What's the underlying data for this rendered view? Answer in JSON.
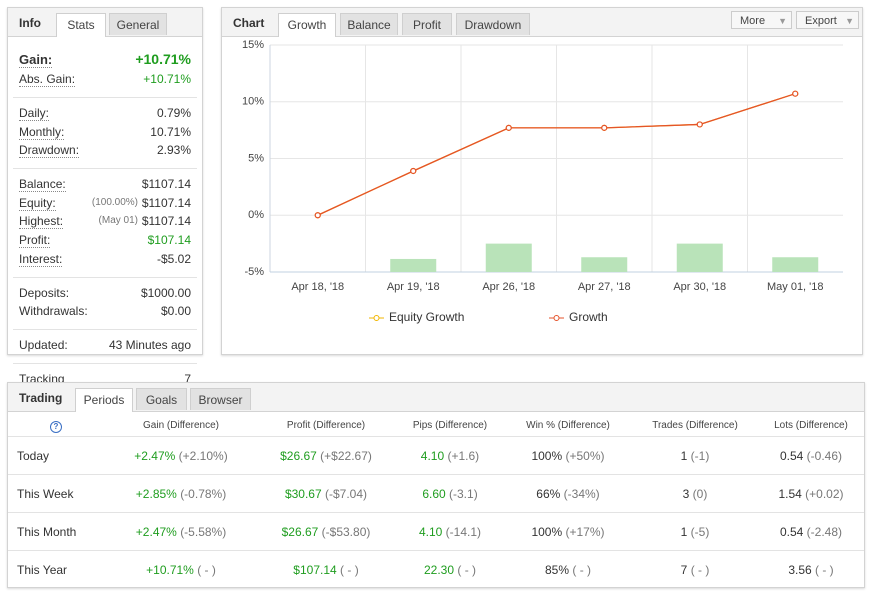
{
  "info_panel": {
    "title": "Info",
    "tabs": [
      "Stats",
      "General"
    ],
    "active_tab": 0,
    "groups": [
      [
        {
          "label": "Gain:",
          "value": "+10.71%",
          "color": "#1f9d1f",
          "emphasis": true
        },
        {
          "label": "Abs. Gain:",
          "value": "+10.71%",
          "color": "#1f9d1f"
        }
      ],
      [
        {
          "label": "Daily:",
          "value": "0.79%"
        },
        {
          "label": "Monthly:",
          "value": "10.71%"
        },
        {
          "label": "Drawdown:",
          "value": "2.93%"
        }
      ],
      [
        {
          "label": "Balance:",
          "value": "$1107.14"
        },
        {
          "label": "Equity:",
          "note": "(100.00%)",
          "value": "$1107.14"
        },
        {
          "label": "Highest:",
          "note": "(May 01)",
          "value": "$1107.14"
        },
        {
          "label": "Profit:",
          "value": "$107.14",
          "color": "#1f9d1f"
        },
        {
          "label": "Interest:",
          "value": "-$5.02"
        }
      ],
      [
        {
          "label": "Deposits:",
          "value": "$1000.00"
        },
        {
          "label": "Withdrawals:",
          "value": "$0.00"
        }
      ],
      [
        {
          "label": "Updated:",
          "value": "43 Minutes ago"
        }
      ],
      [
        {
          "label": "Tracking",
          "value": "7"
        }
      ]
    ]
  },
  "chart_panel": {
    "title": "Chart",
    "tabs": [
      "Growth",
      "Balance",
      "Profit",
      "Drawdown"
    ],
    "active_tab": 0,
    "buttons": [
      "More",
      "Export"
    ]
  },
  "chart_data": {
    "type": "line",
    "categories": [
      "Apr 18, '18",
      "Apr 19, '18",
      "Apr 26, '18",
      "Apr 27, '18",
      "Apr 30, '18",
      "May 01, '18"
    ],
    "series": [
      {
        "name": "Equity Growth",
        "color": "#f2b600",
        "values": [
          0,
          3.9,
          7.7,
          7.7,
          8.0,
          10.71
        ]
      },
      {
        "name": "Growth",
        "color": "#e5532b",
        "values": [
          0,
          3.9,
          7.7,
          7.7,
          8.0,
          10.71
        ]
      }
    ],
    "bars": {
      "color": "#b9e3b9",
      "values": [
        null,
        -3.85,
        -2.5,
        -3.7,
        -2.5,
        -3.7
      ]
    },
    "ylim": [
      -5,
      15
    ],
    "yticks": [
      {
        "value": 15,
        "label": "15%"
      },
      {
        "value": 10,
        "label": "10%"
      },
      {
        "value": 5,
        "label": "5%"
      },
      {
        "value": 0,
        "label": "0%"
      },
      {
        "value": -5,
        "label": "-5%"
      }
    ],
    "grid": true
  },
  "trading": {
    "title": "Trading",
    "tabs": [
      "Periods",
      "Goals",
      "Browser"
    ],
    "active_tab": 0,
    "help_icon": "?",
    "columns": [
      {
        "label": "Gain (Difference)",
        "color": "#1f9d1f"
      },
      {
        "label": "Profit (Difference)",
        "color": "#1f9d1f"
      },
      {
        "label": "Pips (Difference)",
        "color": "#1f9d1f"
      },
      {
        "label": "Win % (Difference)"
      },
      {
        "label": "Trades (Difference)"
      },
      {
        "label": "Lots (Difference)"
      }
    ],
    "rows": [
      {
        "label": "Today",
        "cells": [
          {
            "value": "+2.47%",
            "diff": "(+2.10%)"
          },
          {
            "value": "$26.67",
            "diff": "(+$22.67)"
          },
          {
            "value": "4.10",
            "diff": "(+1.6)"
          },
          {
            "value": "100%",
            "diff": "(+50%)"
          },
          {
            "value": "1",
            "diff": "(-1)"
          },
          {
            "value": "0.54",
            "diff": "(-0.46)"
          }
        ]
      },
      {
        "label": "This Week",
        "cells": [
          {
            "value": "+2.85%",
            "diff": "(-0.78%)"
          },
          {
            "value": "$30.67",
            "diff": "(-$7.04)"
          },
          {
            "value": "6.60",
            "diff": "(-3.1)"
          },
          {
            "value": "66%",
            "diff": "(-34%)"
          },
          {
            "value": "3",
            "diff": "(0)"
          },
          {
            "value": "1.54",
            "diff": "(+0.02)"
          }
        ]
      },
      {
        "label": "This Month",
        "cells": [
          {
            "value": "+2.47%",
            "diff": "(-5.58%)"
          },
          {
            "value": "$26.67",
            "diff": "(-$53.80)"
          },
          {
            "value": "4.10",
            "diff": "(-14.1)"
          },
          {
            "value": "100%",
            "diff": "(+17%)"
          },
          {
            "value": "1",
            "diff": "(-5)"
          },
          {
            "value": "0.54",
            "diff": "(-2.48)"
          }
        ]
      },
      {
        "label": "This Year",
        "cells": [
          {
            "value": "+10.71%",
            "diff": "( - )"
          },
          {
            "value": "$107.14",
            "diff": "( - )"
          },
          {
            "value": "22.30",
            "diff": "( - )"
          },
          {
            "value": "85%",
            "diff": "( - )"
          },
          {
            "value": "7",
            "diff": "( - )"
          },
          {
            "value": "3.56",
            "diff": "( - )"
          }
        ]
      }
    ]
  }
}
